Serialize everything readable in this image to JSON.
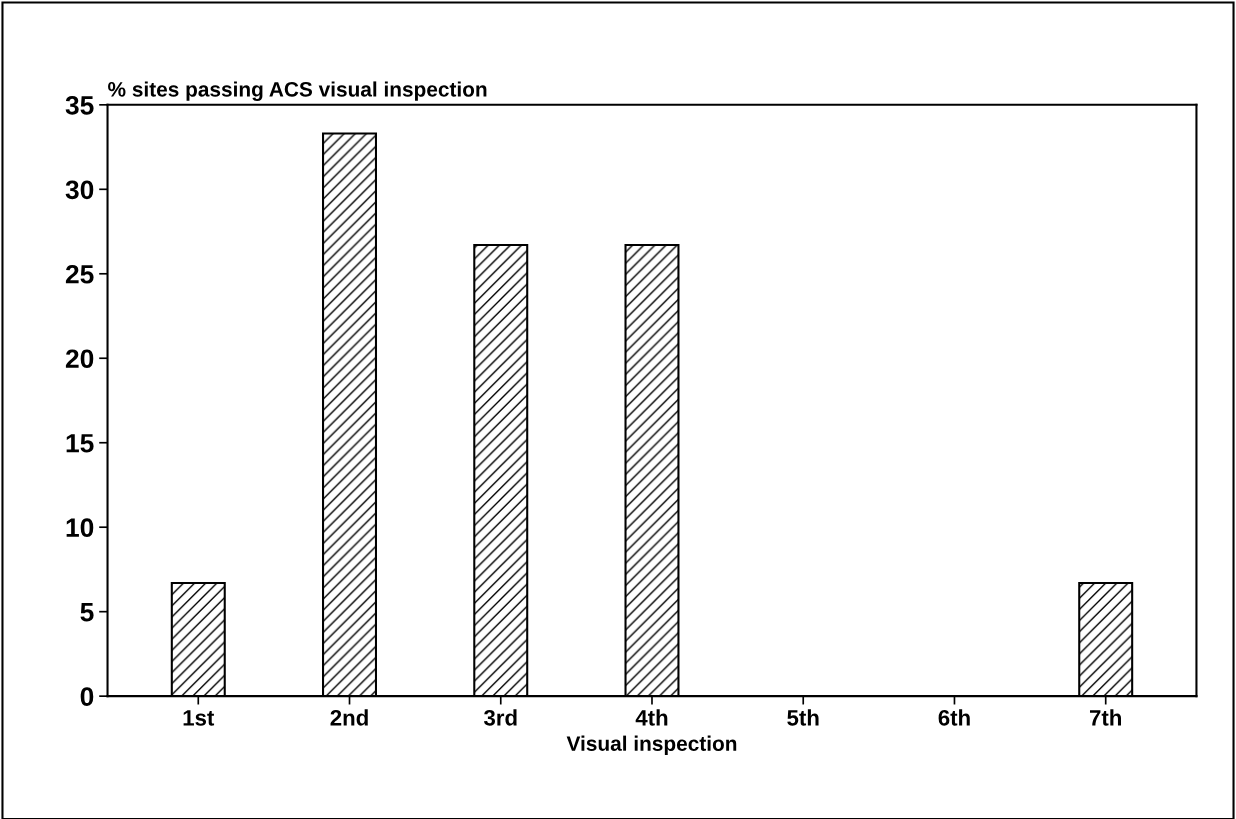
{
  "chart_data": {
    "type": "bar",
    "title": "% sites passing ACS visual inspection",
    "xlabel": "Visual inspection",
    "categories": [
      "1st",
      "2nd",
      "3rd",
      "4th",
      "5th",
      "6th",
      "7th"
    ],
    "values": [
      6.7,
      33.3,
      26.7,
      26.7,
      0,
      0,
      6.7
    ],
    "color": "#000000",
    "ylim": [
      0,
      35
    ],
    "yticks": [
      0,
      5,
      10,
      15,
      20,
      25,
      30,
      35
    ],
    "grid": false,
    "legend": false
  }
}
